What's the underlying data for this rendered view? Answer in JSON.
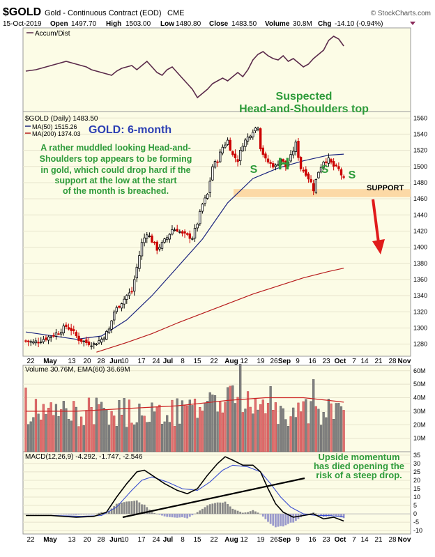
{
  "header": {
    "symbol": "$GOLD",
    "description": "Gold - Continuous Contract (EOD)",
    "exchange": "CME",
    "copyright": "© StockCharts.com",
    "date": "15-Oct-2019",
    "open_label": "Open",
    "open": "1497.70",
    "high_label": "High",
    "high": "1503.00",
    "low_label": "Low",
    "low": "1480.80",
    "close_label": "Close",
    "close": "1483.50",
    "volume_label": "Volume",
    "volume": "30.8M",
    "chg_label": "Chg",
    "chg": "-14.10 (-0.94%)"
  },
  "colors": {
    "panel_bg": "#fcfce6",
    "candle_up": "#000000",
    "candle_down": "#cc0000",
    "ma50": "#1a237e",
    "ma200": "#b71c1c",
    "accum": "#5a2a4a",
    "support_band": "#fcd9a6",
    "annotation_green": "#2e9b3a",
    "annotation_blue": "#2b3fb3",
    "vol_up": "#808080",
    "vol_down": "#e07070",
    "hist": "#9a9acc"
  },
  "accum_panel": {
    "legend": "Accum/Dist"
  },
  "price_panel": {
    "legend_symbol": "$GOLD (Daily) 1483.50",
    "legend_ma50": "MA(50) 1515.26",
    "legend_ma200": "MA(200) 1374.03",
    "title": "GOLD: 6-month",
    "pattern_title_1": "Suspected",
    "pattern_title_2": "Head-and-Shoulders top",
    "commentary": [
      "A rather muddled looking Head-and-",
      "Shoulders top appears to be forming",
      "in gold, which could drop hard if the",
      "support at the low at the start",
      "of the month is breached."
    ],
    "label_s": "S",
    "label_h": "H",
    "support_label": "SUPPORT"
  },
  "volume_panel": {
    "legend": "Volume 30.76M, EMA(60) 36.69M"
  },
  "macd_panel": {
    "legend": "MACD(12,26,9) -4.292, -1.747, -2.546",
    "commentary": [
      "Upside momentum",
      "has died opening the",
      "risk of a steep drop."
    ]
  },
  "x_axis_labels": [
    "22",
    "May",
    "13",
    "20",
    "28",
    "Jun",
    "10",
    "17",
    "24",
    "Jul",
    "8",
    "15",
    "22",
    "Aug",
    "12",
    "19",
    "26",
    "Sep",
    "9",
    "16",
    "23",
    "Oct",
    "7",
    "14",
    "21",
    "28",
    "Nov"
  ],
  "chart_data": {
    "type": "candlestick",
    "x_axis": "dates, late Apr 2019 to early Nov 2019",
    "price": {
      "yticks": [
        1280,
        1300,
        1320,
        1340,
        1360,
        1380,
        1400,
        1420,
        1440,
        1460,
        1480,
        1500,
        1520,
        1540,
        1560
      ],
      "ylim": [
        1265,
        1568
      ],
      "support_level": [
        1462,
        1472
      ],
      "series": [
        {
          "name": "$GOLD",
          "close_path": [
            [
              0,
              1284
            ],
            [
              3,
              1282
            ],
            [
              6,
              1285
            ],
            [
              10,
              1290
            ],
            [
              13,
              1295
            ],
            [
              16,
              1302
            ],
            [
              18,
              1298
            ],
            [
              21,
              1286
            ],
            [
              24,
              1282
            ],
            [
              27,
              1280
            ],
            [
              30,
              1286
            ],
            [
              33,
              1298
            ],
            [
              35,
              1320
            ],
            [
              37,
              1328
            ],
            [
              40,
              1340
            ],
            [
              42,
              1345
            ],
            [
              44,
              1375
            ],
            [
              46,
              1405
            ],
            [
              48,
              1418
            ],
            [
              50,
              1408
            ],
            [
              52,
              1398
            ],
            [
              54,
              1404
            ],
            [
              56,
              1412
            ],
            [
              58,
              1422
            ],
            [
              60,
              1422
            ],
            [
              62,
              1416
            ],
            [
              64,
              1414
            ],
            [
              66,
              1412
            ],
            [
              68,
              1430
            ],
            [
              70,
              1453
            ],
            [
              72,
              1465
            ],
            [
              74,
              1500
            ],
            [
              76,
              1508
            ],
            [
              78,
              1524
            ],
            [
              80,
              1532
            ],
            [
              82,
              1514
            ],
            [
              84,
              1508
            ],
            [
              86,
              1528
            ],
            [
              88,
              1536
            ],
            [
              90,
              1545
            ],
            [
              92,
              1550
            ],
            [
              93,
              1524
            ],
            [
              95,
              1508
            ],
            [
              97,
              1503
            ],
            [
              99,
              1500
            ],
            [
              101,
              1510
            ],
            [
              103,
              1500
            ],
            [
              105,
              1512
            ],
            [
              107,
              1528
            ],
            [
              109,
              1498
            ],
            [
              111,
              1492
            ],
            [
              113,
              1480
            ],
            [
              114,
              1472
            ],
            [
              116,
              1494
            ],
            [
              118,
              1507
            ],
            [
              120,
              1508
            ],
            [
              122,
              1500
            ],
            [
              124,
              1496
            ],
            [
              125,
              1490
            ],
            [
              126,
              1484
            ]
          ]
        },
        {
          "name": "MA(50)",
          "points": [
            [
              0,
              1295
            ],
            [
              20,
              1286
            ],
            [
              30,
              1290
            ],
            [
              40,
              1310
            ],
            [
              50,
              1340
            ],
            [
              60,
              1375
            ],
            [
              70,
              1410
            ],
            [
              80,
              1455
            ],
            [
              90,
              1485
            ],
            [
              100,
              1498
            ],
            [
              110,
              1507
            ],
            [
              120,
              1514
            ],
            [
              126,
              1515.26
            ]
          ]
        },
        {
          "name": "MA(200)",
          "points": [
            [
              28,
              1270
            ],
            [
              40,
              1282
            ],
            [
              50,
              1293
            ],
            [
              60,
              1306
            ],
            [
              70,
              1318
            ],
            [
              80,
              1330
            ],
            [
              90,
              1342
            ],
            [
              100,
              1352
            ],
            [
              110,
              1362
            ],
            [
              120,
              1370
            ],
            [
              126,
              1374.03
            ]
          ]
        }
      ]
    },
    "volume": {
      "yticks": [
        "10M",
        "20M",
        "30M",
        "40M",
        "50M",
        "60M"
      ],
      "ylim": [
        0,
        64
      ],
      "last": 30.76,
      "ema60": 36.69
    },
    "macd": {
      "yticks": [
        -10,
        -5,
        0,
        5,
        10,
        15,
        20,
        25,
        30,
        35
      ],
      "ylim": [
        -12,
        37
      ],
      "macd": [
        [
          0,
          -1
        ],
        [
          10,
          -1
        ],
        [
          20,
          -2
        ],
        [
          27,
          -1.5
        ],
        [
          32,
          1
        ],
        [
          36,
          10
        ],
        [
          40,
          18
        ],
        [
          44,
          25
        ],
        [
          47,
          26
        ],
        [
          50,
          23
        ],
        [
          55,
          18
        ],
        [
          60,
          14
        ],
        [
          64,
          12
        ],
        [
          68,
          15
        ],
        [
          72,
          23
        ],
        [
          76,
          30
        ],
        [
          79,
          34
        ],
        [
          82,
          32
        ],
        [
          86,
          29
        ],
        [
          90,
          29
        ],
        [
          93,
          25
        ],
        [
          96,
          15
        ],
        [
          99,
          6
        ],
        [
          102,
          1
        ],
        [
          106,
          -2
        ],
        [
          110,
          -1
        ],
        [
          114,
          0
        ],
        [
          118,
          -3
        ],
        [
          122,
          -2
        ],
        [
          126,
          -4.292
        ]
      ],
      "signal": [
        [
          0,
          -1
        ],
        [
          12,
          -1
        ],
        [
          22,
          -1.5
        ],
        [
          30,
          -1
        ],
        [
          36,
          4
        ],
        [
          42,
          14
        ],
        [
          46,
          20
        ],
        [
          50,
          22
        ],
        [
          56,
          19
        ],
        [
          62,
          15
        ],
        [
          68,
          14
        ],
        [
          73,
          19
        ],
        [
          78,
          26
        ],
        [
          82,
          29
        ],
        [
          88,
          28
        ],
        [
          93,
          25
        ],
        [
          97,
          18
        ],
        [
          101,
          10
        ],
        [
          105,
          4
        ],
        [
          110,
          0
        ],
        [
          115,
          -1
        ],
        [
          120,
          -1
        ],
        [
          126,
          -1.747
        ]
      ]
    }
  }
}
